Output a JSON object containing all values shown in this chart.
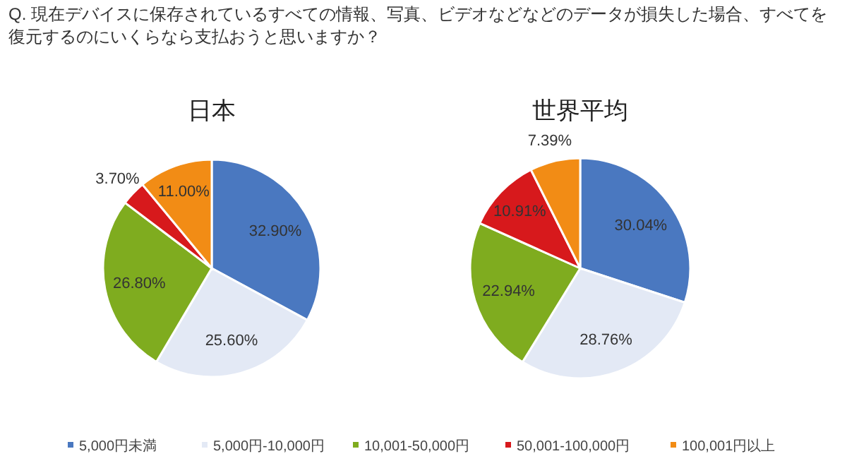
{
  "chart_data": [
    {
      "type": "pie",
      "title": "日本",
      "annotations": [
        "Q. 現在デバイスに保存されているすべての情報、写真、ビデオなどなどのデータが損失した場合、すべてを復元するのにいくらなら支払おうと思いますか？"
      ],
      "legend": "bottom",
      "categories": [
        "5,000円未満",
        "5,000円-10,000円",
        "10,001-50,000円",
        "50,001-100,000円",
        "100,001円以上"
      ],
      "values": [
        32.9,
        25.6,
        26.8,
        3.7,
        11.0
      ],
      "value_labels": [
        "32.90%",
        "25.60%",
        "26.80%",
        "3.70%",
        "11.00%"
      ],
      "colors": [
        "#4a78c0",
        "#e3e9f5",
        "#7fac1f",
        "#d7191c",
        "#f28c15"
      ]
    },
    {
      "type": "pie",
      "title": "世界平均",
      "categories": [
        null,
        null,
        null,
        null,
        null
      ],
      "values": [
        30.04,
        28.76,
        22.94,
        10.91,
        7.39
      ],
      "value_labels": [
        "30.04%",
        "28.76%",
        "22.94%",
        "10.91%",
        "7.39%"
      ],
      "colors": [
        "#4a78c0",
        "#e3e9f5",
        "#7fac1f",
        "#d7191c",
        "#f28c15"
      ]
    }
  ]
}
